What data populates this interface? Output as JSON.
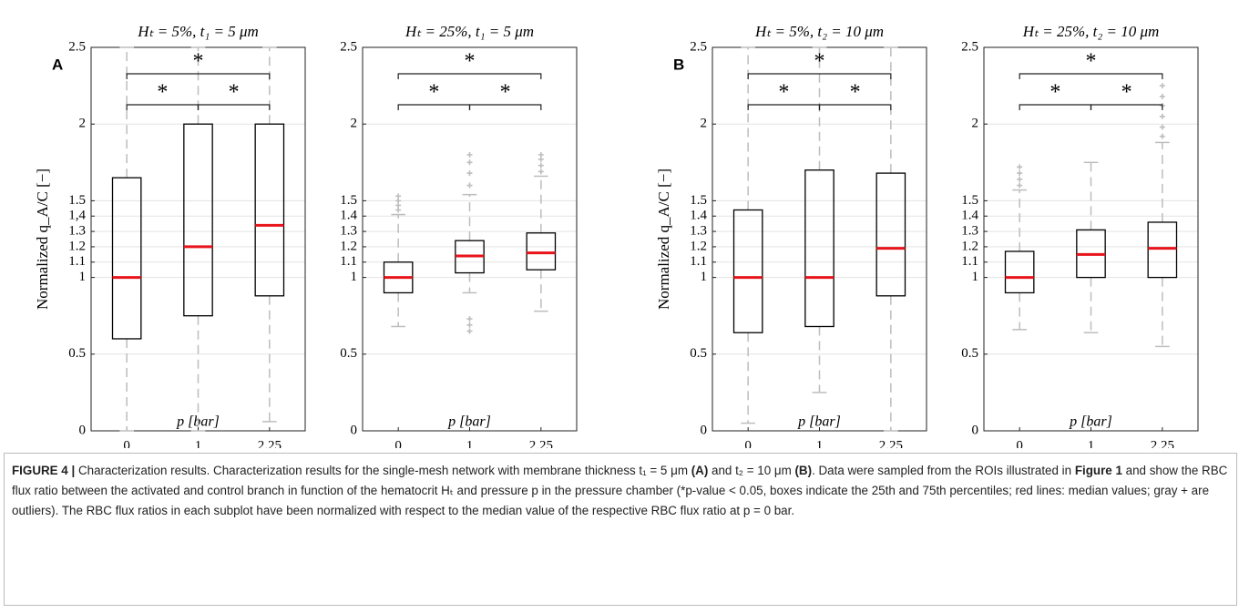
{
  "chart_data": [
    {
      "type": "box",
      "panel_label": "A",
      "title": "Hₜ = 5%,  t₁ = 5 μm",
      "ylabel": "Normalized q_A/C [−]",
      "xlabel": "p [bar]",
      "categories": [
        "0",
        "1",
        "2.25"
      ],
      "q1": [
        0.6,
        0.75,
        0.88
      ],
      "median": [
        1.0,
        1.2,
        1.34
      ],
      "q3": [
        1.65,
        2.0,
        2.0
      ],
      "whisker_low": [
        0,
        0,
        0.06
      ],
      "whisker_high": [
        2.5,
        2.5,
        2.5
      ],
      "outliers": [
        [],
        [],
        []
      ],
      "ylim": [
        0,
        2.5
      ],
      "yticks": [
        0,
        0.5,
        1,
        1.1,
        1.2,
        1.3,
        {
          "value": 1.4,
          "label": "1,4"
        },
        1.5,
        2,
        2.5
      ],
      "grid": true,
      "brackets": [
        {
          "from": "0",
          "to": "1",
          "text": "*"
        },
        {
          "from": "1",
          "to": "2.25",
          "text": "*"
        },
        {
          "from": "0",
          "to": "2.25",
          "text": "*"
        }
      ],
      "box_color": "#000000",
      "median_color": "#e8141b",
      "whisker_color": "#bdbdbd"
    },
    {
      "type": "box",
      "title": "Hₜ = 25%,  t₁ = 5 μm",
      "xlabel": "p [bar]",
      "categories": [
        "0",
        "1",
        "2.25"
      ],
      "q1": [
        0.9,
        1.03,
        1.05
      ],
      "median": [
        1.0,
        1.14,
        1.16
      ],
      "q3": [
        1.1,
        1.24,
        1.29
      ],
      "whisker_low": [
        0.68,
        0.9,
        0.78
      ],
      "whisker_high": [
        1.41,
        1.54,
        1.66
      ],
      "outliers": [
        [
          1.44,
          1.47,
          1.5,
          1.53
        ],
        [
          0.65,
          0.69,
          0.73,
          1.6,
          1.68,
          1.75,
          1.8
        ],
        [
          1.69,
          1.73,
          1.77,
          1.8
        ]
      ],
      "ylim": [
        0,
        2.5
      ],
      "yticks": [
        0,
        0.5,
        1,
        1.1,
        1.2,
        1.3,
        1.4,
        1.5,
        2,
        2.5
      ],
      "grid": true,
      "brackets": [
        {
          "from": "0",
          "to": "1",
          "text": "*"
        },
        {
          "from": "1",
          "to": "2.25",
          "text": "*"
        },
        {
          "from": "0",
          "to": "2.25",
          "text": "*"
        }
      ],
      "box_color": "#000000",
      "median_color": "#e8141b",
      "whisker_color": "#bdbdbd"
    },
    {
      "type": "box",
      "panel_label": "B",
      "title": "Hₜ = 5%,  t₂ = 10 μm",
      "ylabel": "Normalized q_A/C [−]",
      "xlabel": "p [bar]",
      "categories": [
        "0",
        "1",
        "2.25"
      ],
      "q1": [
        0.64,
        0.68,
        0.88
      ],
      "median": [
        1.0,
        1.0,
        1.19
      ],
      "q3": [
        1.44,
        1.7,
        1.68
      ],
      "whisker_low": [
        0.05,
        0.25,
        0
      ],
      "whisker_high": [
        2.5,
        2.5,
        2.5
      ],
      "outliers": [
        [],
        [],
        []
      ],
      "ylim": [
        0,
        2.5
      ],
      "yticks": [
        0,
        0.5,
        1,
        1.1,
        1.2,
        1.3,
        1.4,
        1.5,
        2,
        2.5
      ],
      "grid": true,
      "brackets": [
        {
          "from": "0",
          "to": "1",
          "text": "*"
        },
        {
          "from": "1",
          "to": "2.25",
          "text": "*"
        },
        {
          "from": "0",
          "to": "2.25",
          "text": "*"
        }
      ],
      "box_color": "#000000",
      "median_color": "#e8141b",
      "whisker_color": "#bdbdbd"
    },
    {
      "type": "box",
      "title": "Hₜ = 25%,  t₂ = 10 μm",
      "xlabel": "p [bar]",
      "categories": [
        "0",
        "1",
        "2.25"
      ],
      "q1": [
        0.9,
        1.0,
        1.0
      ],
      "median": [
        1.0,
        1.15,
        1.19
      ],
      "q3": [
        1.17,
        1.31,
        1.36
      ],
      "whisker_low": [
        0.66,
        0.64,
        0.55
      ],
      "whisker_high": [
        1.57,
        1.75,
        1.88
      ],
      "outliers": [
        [
          1.6,
          1.64,
          1.68,
          1.72
        ],
        [],
        [
          1.92,
          1.98,
          2.05,
          2.12,
          2.18,
          2.25
        ]
      ],
      "ylim": [
        0,
        2.5
      ],
      "yticks": [
        0,
        0.5,
        1,
        1.1,
        1.2,
        1.3,
        1.4,
        1.5,
        2,
        2.5
      ],
      "grid": true,
      "brackets": [
        {
          "from": "0",
          "to": "1",
          "text": "*"
        },
        {
          "from": "1",
          "to": "2.25",
          "text": "*"
        },
        {
          "from": "0",
          "to": "2.25",
          "text": "*"
        }
      ],
      "box_color": "#000000",
      "median_color": "#e8141b",
      "whisker_color": "#bdbdbd"
    }
  ],
  "caption": {
    "segments": [
      {
        "text": "FIGURE 4 | ",
        "bold": true
      },
      {
        "text": "Characterization results. Characterization results for the single-mesh network with membrane thickness t₁ = 5 μm ",
        "bold": false
      },
      {
        "text": "(A)",
        "bold": true
      },
      {
        "text": " and t₂ = 10 μm ",
        "bold": false
      },
      {
        "text": "(B)",
        "bold": true
      },
      {
        "text": ". Data were sampled from the ROIs illustrated in ",
        "bold": false
      },
      {
        "text": "Figure 1",
        "bold": true
      },
      {
        "text": " and show the RBC flux ratio between the activated and control branch in function of the hematocrit Hₜ and pressure p in the pressure chamber (*p-value < 0.05, boxes indicate the 25th and 75th percentiles; red lines: median values; gray + are outliers). The RBC flux ratios in each subplot have been normalized with respect to the median value of the respective RBC flux ratio at p = 0 bar.",
        "bold": false
      }
    ]
  }
}
